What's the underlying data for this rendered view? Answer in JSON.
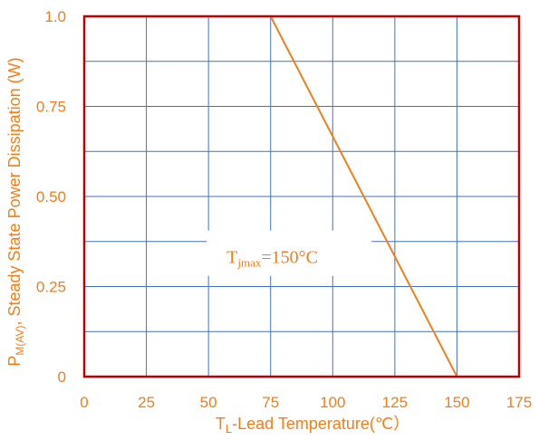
{
  "chart_data": {
    "type": "line",
    "title": "",
    "xlabel": {
      "main": "T",
      "sub": "L",
      "rest": "-Lead Temperature(℃）"
    },
    "ylabel": {
      "main": "P",
      "sub": "M(AV)",
      "rest": ", Steady State Power Dissipation (W)"
    },
    "xlim": [
      0,
      175
    ],
    "ylim": [
      0,
      1.0
    ],
    "x_ticks": [
      0,
      25,
      50,
      75,
      100,
      125,
      150,
      175
    ],
    "x_tick_labels": [
      "0",
      "25",
      "50",
      "75",
      "100",
      "125",
      "150",
      "175"
    ],
    "y_ticks": [
      0,
      0.25,
      0.5,
      0.75,
      1.0
    ],
    "y_tick_labels": [
      "0",
      "0.25",
      "0.50",
      "0.75",
      "1.0"
    ],
    "y_minor_step": 0.125,
    "grid": true,
    "series": [
      {
        "x": [
          0,
          75,
          150
        ],
        "y": [
          1.0,
          1.0,
          0
        ]
      }
    ],
    "annotation": {
      "main": "T",
      "sub": "jmax",
      "rest": "=150°C",
      "x": 50,
      "y": 0.325
    },
    "colors": {
      "line": "#F07F1B",
      "frame": "#C00000",
      "grid": "#4472C4",
      "text": "#F07F1B"
    }
  }
}
